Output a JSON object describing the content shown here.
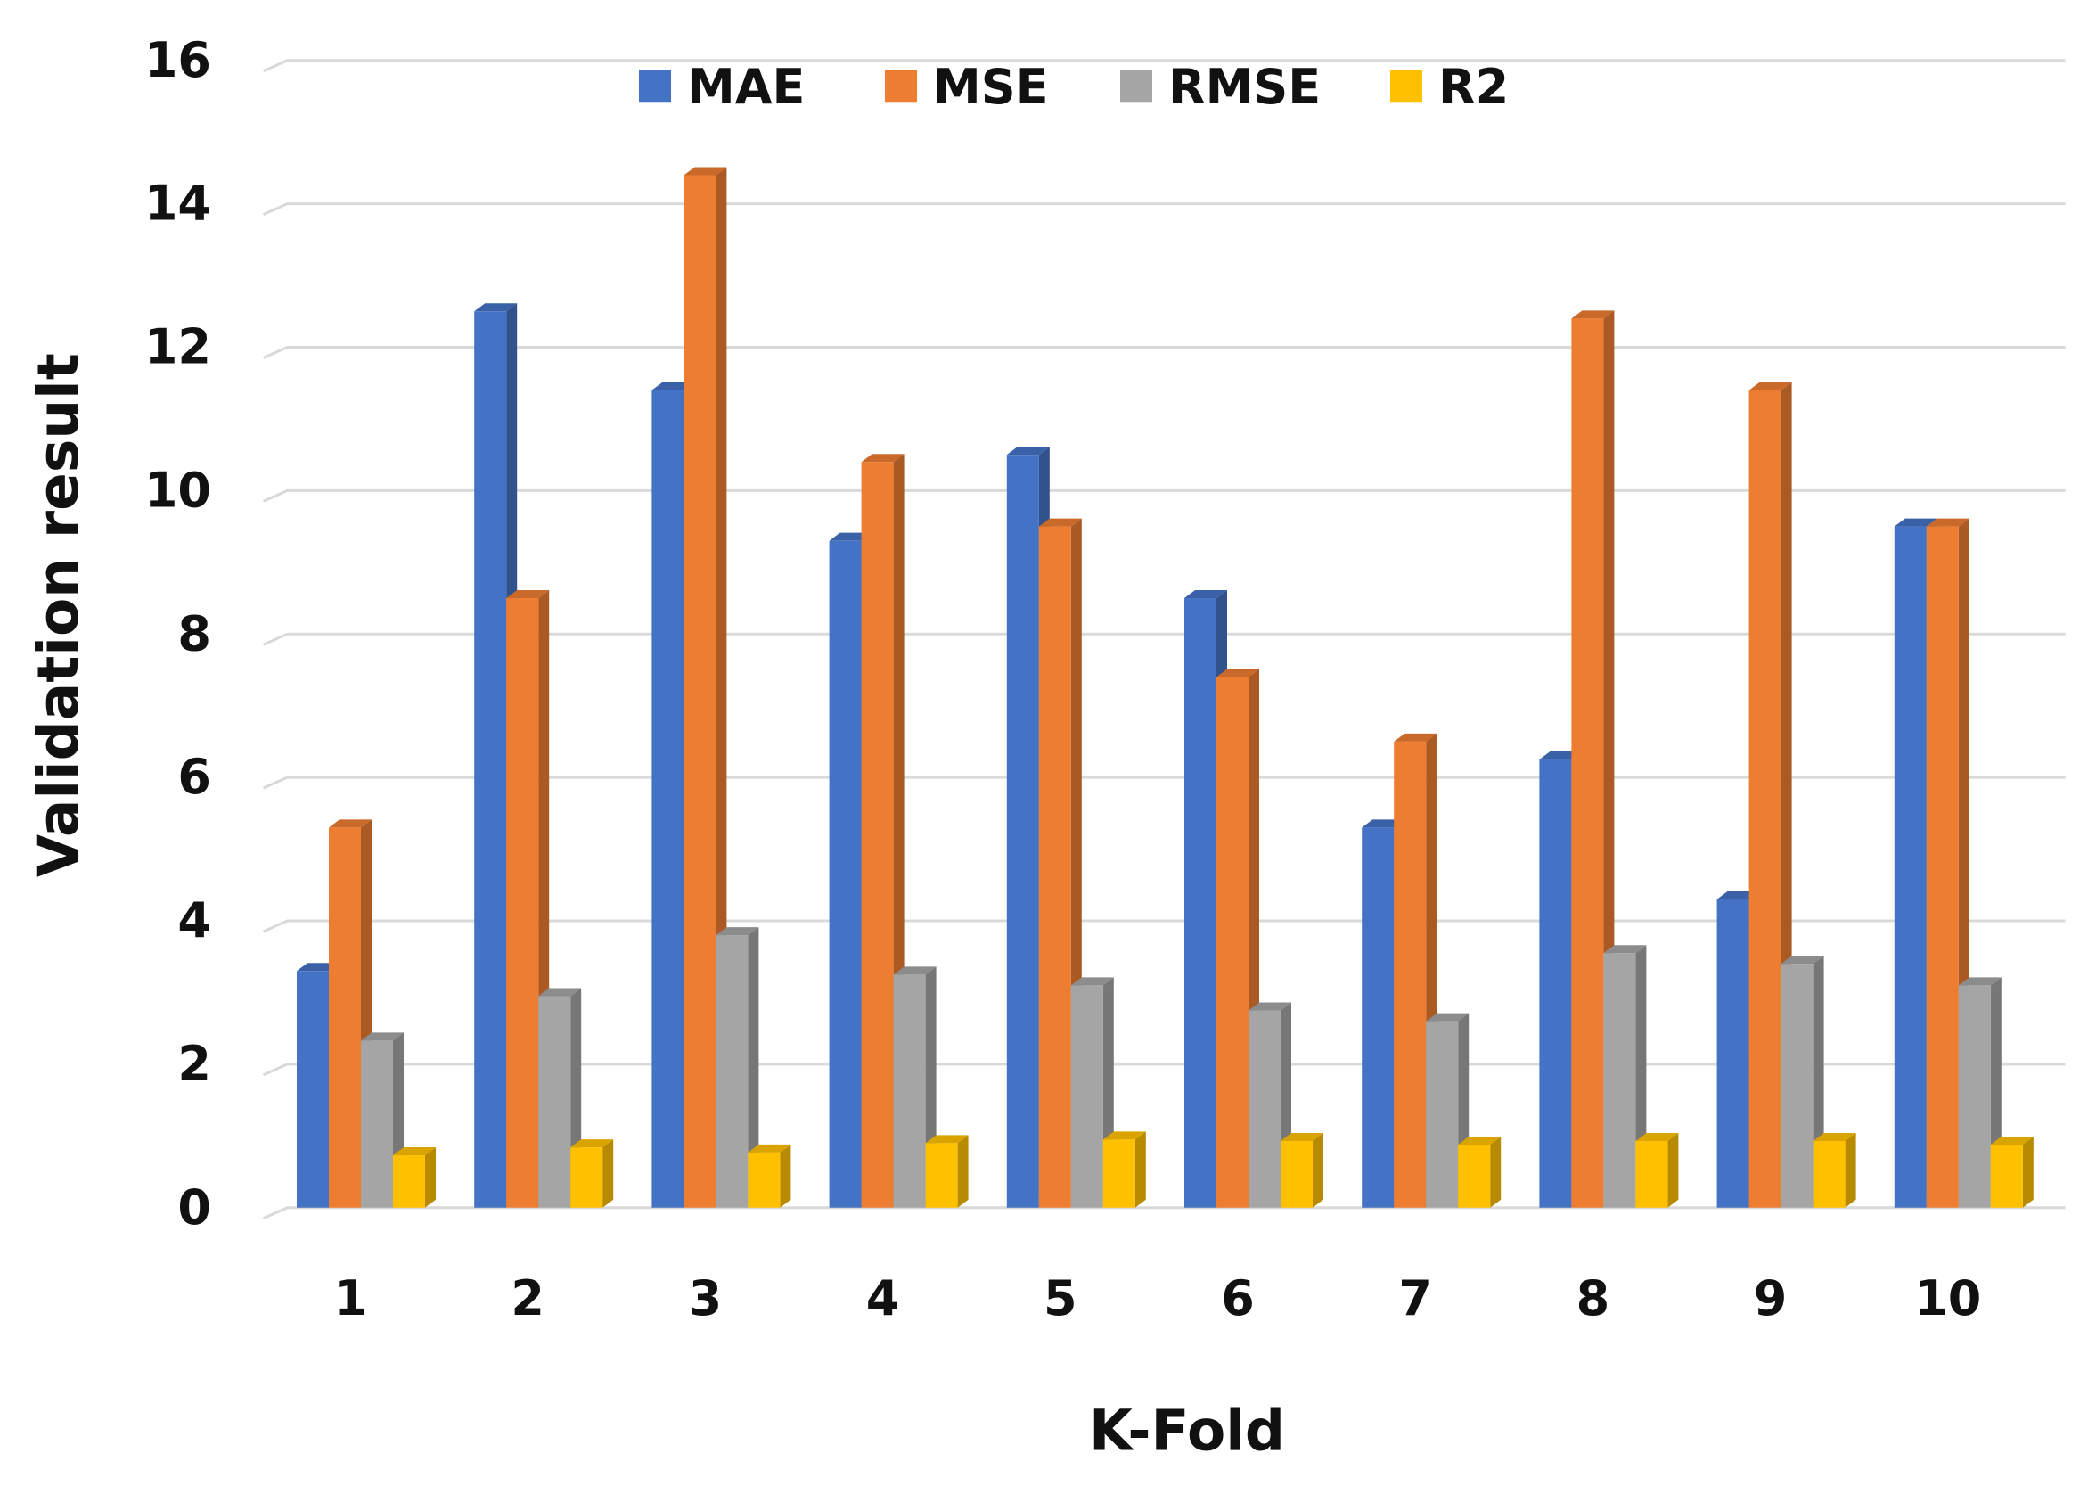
{
  "chart_data": {
    "type": "bar",
    "title": "",
    "xlabel": "K-Fold",
    "ylabel": "Validation result",
    "ylim": [
      0,
      16
    ],
    "yticks": [
      "0",
      "2",
      "4",
      "6",
      "8",
      "10",
      "12",
      "14",
      "16"
    ],
    "grid": true,
    "legend_position": "top",
    "style": "3d-column",
    "categories": [
      "1",
      "2",
      "3",
      "4",
      "5",
      "6",
      "7",
      "8",
      "9",
      "10"
    ],
    "series": [
      {
        "name": "MAE",
        "color": "#4472C4",
        "values": [
          3.3,
          12.5,
          11.4,
          9.3,
          10.5,
          8.5,
          5.3,
          6.25,
          4.3,
          9.5
        ]
      },
      {
        "name": "MSE",
        "color": "#ED7D31",
        "values": [
          5.3,
          8.5,
          14.4,
          10.4,
          9.5,
          7.4,
          6.5,
          12.4,
          11.4,
          9.5
        ]
      },
      {
        "name": "RMSE",
        "color": "#A5A5A5",
        "values": [
          2.33,
          2.95,
          3.8,
          3.25,
          3.1,
          2.75,
          2.6,
          3.55,
          3.4,
          3.1
        ]
      },
      {
        "name": "R2",
        "color": "#FFC000",
        "values": [
          0.73,
          0.84,
          0.77,
          0.9,
          0.95,
          0.93,
          0.88,
          0.93,
          0.93,
          0.88
        ]
      }
    ]
  }
}
